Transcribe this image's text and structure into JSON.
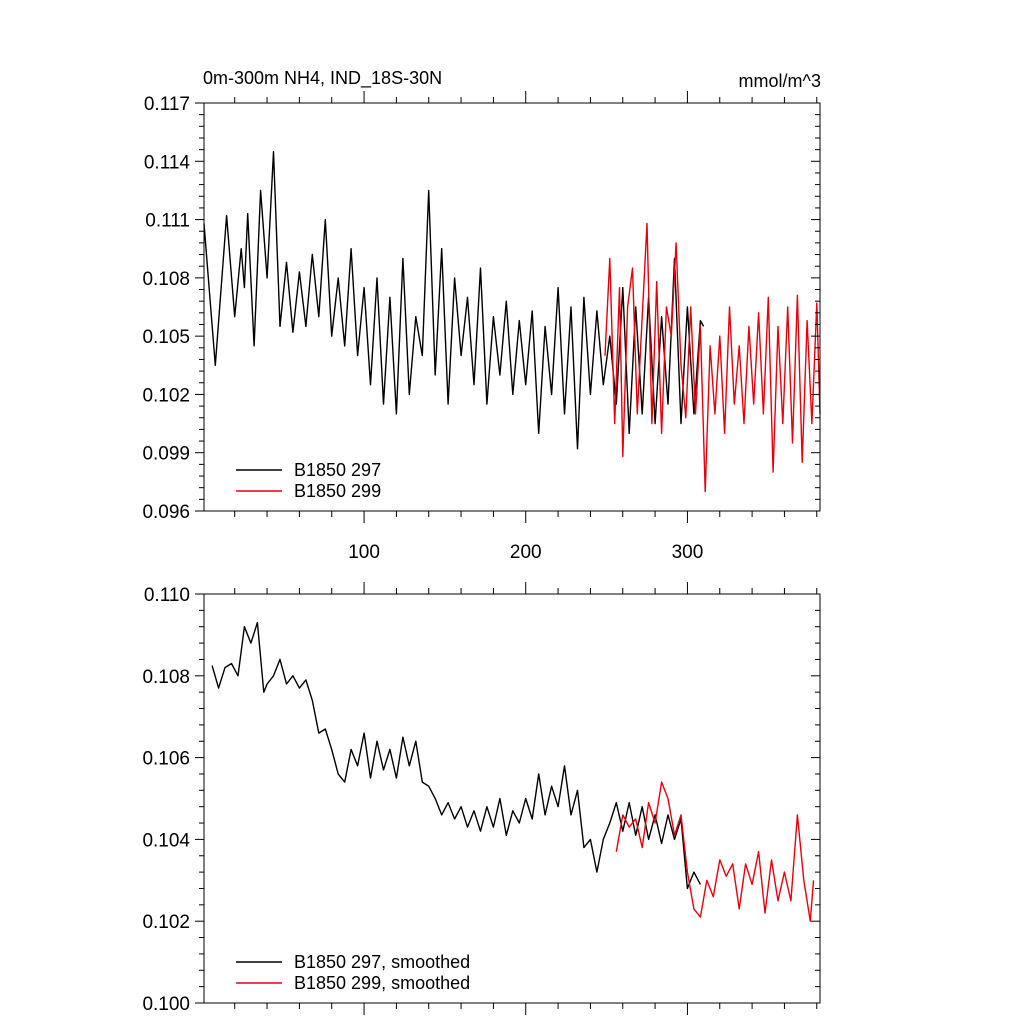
{
  "chart_data": [
    {
      "type": "line",
      "title": "0m-300m NH4, IND_18S-30N",
      "units": "mmol/m^3",
      "xlim": [
        1,
        382
      ],
      "ylim": [
        0.096,
        0.117
      ],
      "x_ticks": [
        100,
        200,
        300
      ],
      "x_tick_labels": [
        "100",
        "200",
        "300"
      ],
      "y_ticks": [
        0.096,
        0.099,
        0.102,
        0.105,
        0.108,
        0.111,
        0.114,
        0.117
      ],
      "y_tick_labels": [
        "0.096",
        "0.099",
        "0.102",
        "0.105",
        "0.108",
        "0.111",
        "0.114",
        "0.117"
      ],
      "grid": false,
      "legend_position": "bottom-left",
      "series": [
        {
          "name": "B1850 297",
          "color": "#000000",
          "x": [
            1,
            8,
            15,
            20,
            24,
            26,
            28,
            32,
            36,
            40,
            44,
            48,
            52,
            56,
            60,
            64,
            68,
            72,
            76,
            80,
            84,
            88,
            92,
            96,
            100,
            104,
            108,
            112,
            116,
            120,
            124,
            128,
            132,
            136,
            140,
            144,
            148,
            152,
            156,
            160,
            164,
            168,
            172,
            176,
            180,
            184,
            188,
            192,
            196,
            200,
            204,
            208,
            212,
            216,
            220,
            224,
            228,
            232,
            236,
            240,
            244,
            248,
            252,
            256,
            260,
            264,
            268,
            272,
            276,
            280,
            284,
            288,
            292,
            296,
            300,
            304,
            308,
            310
          ],
          "values": [
            0.1108,
            0.1035,
            0.1112,
            0.106,
            0.1095,
            0.1075,
            0.1113,
            0.1045,
            0.1125,
            0.108,
            0.1145,
            0.1055,
            0.1088,
            0.1052,
            0.1083,
            0.1055,
            0.1092,
            0.106,
            0.111,
            0.105,
            0.108,
            0.1045,
            0.1095,
            0.104,
            0.1075,
            0.1025,
            0.108,
            0.1015,
            0.107,
            0.101,
            0.109,
            0.102,
            0.106,
            0.104,
            0.1125,
            0.103,
            0.1095,
            0.1015,
            0.108,
            0.104,
            0.107,
            0.1025,
            0.1085,
            0.1015,
            0.106,
            0.103,
            0.1068,
            0.102,
            0.1058,
            0.1025,
            0.1063,
            0.1,
            0.1055,
            0.102,
            0.1075,
            0.101,
            0.1065,
            0.0992,
            0.107,
            0.102,
            0.1063,
            0.1025,
            0.105,
            0.1015,
            0.1075,
            0.1,
            0.1065,
            0.101,
            0.107,
            0.1005,
            0.106,
            0.1015,
            0.109,
            0.1005,
            0.1065,
            0.101,
            0.1058,
            0.1055
          ]
        },
        {
          "name": "B1850 299",
          "color": "#e8000b",
          "x": [
            249,
            252,
            255,
            258,
            260,
            263,
            266,
            269,
            272,
            275,
            278,
            281,
            284,
            287,
            290,
            293,
            296,
            299,
            302,
            305,
            308,
            311,
            314,
            317,
            320,
            323,
            326,
            329,
            332,
            335,
            338,
            341,
            344,
            347,
            350,
            353,
            356,
            359,
            362,
            365,
            368,
            371,
            374,
            377,
            380,
            382
          ],
          "values": [
            0.104,
            0.109,
            0.1005,
            0.1075,
            0.0988,
            0.1065,
            0.1085,
            0.101,
            0.106,
            0.1108,
            0.1005,
            0.1078,
            0.1,
            0.1065,
            0.105,
            0.1098,
            0.1035,
            0.1008,
            0.1065,
            0.101,
            0.1055,
            0.097,
            0.1045,
            0.101,
            0.105,
            0.1,
            0.1065,
            0.1015,
            0.1045,
            0.1005,
            0.1055,
            0.1015,
            0.1062,
            0.101,
            0.107,
            0.098,
            0.1055,
            0.1005,
            0.1065,
            0.0995,
            0.1071,
            0.0985,
            0.1058,
            0.1005,
            0.1067,
            0.101
          ]
        }
      ]
    },
    {
      "type": "line",
      "xlim": [
        1,
        382
      ],
      "ylim": [
        0.1,
        0.11
      ],
      "x_ticks": [
        100,
        200,
        300
      ],
      "y_ticks": [
        0.1,
        0.102,
        0.104,
        0.106,
        0.108,
        0.11
      ],
      "y_tick_labels": [
        "0.100",
        "0.102",
        "0.104",
        "0.106",
        "0.108",
        "0.110"
      ],
      "grid": false,
      "legend_position": "bottom-left",
      "series": [
        {
          "name": "B1850 297, smoothed",
          "color": "#000000",
          "x": [
            6,
            10,
            14,
            18,
            22,
            26,
            30,
            34,
            38,
            40,
            44,
            48,
            52,
            56,
            60,
            64,
            68,
            72,
            76,
            80,
            84,
            88,
            92,
            96,
            100,
            104,
            108,
            112,
            116,
            120,
            124,
            128,
            132,
            136,
            140,
            144,
            148,
            152,
            156,
            160,
            164,
            168,
            172,
            176,
            180,
            184,
            188,
            192,
            196,
            200,
            204,
            208,
            212,
            216,
            220,
            224,
            228,
            232,
            236,
            240,
            244,
            248,
            252,
            256,
            260,
            264,
            268,
            272,
            276,
            280,
            284,
            288,
            292,
            296,
            300,
            304,
            308
          ],
          "values": [
            0.10825,
            0.1077,
            0.1082,
            0.1083,
            0.108,
            0.1092,
            0.1088,
            0.1093,
            0.1076,
            0.1078,
            0.108,
            0.1084,
            0.1078,
            0.108,
            0.1077,
            0.1079,
            0.1074,
            0.1066,
            0.1067,
            0.1062,
            0.1056,
            0.1054,
            0.1062,
            0.1058,
            0.1066,
            0.1055,
            0.1064,
            0.1057,
            0.1062,
            0.1055,
            0.1065,
            0.1058,
            0.1064,
            0.1054,
            0.1053,
            0.105,
            0.1046,
            0.1049,
            0.1045,
            0.1048,
            0.1043,
            0.1047,
            0.1042,
            0.1048,
            0.1043,
            0.105,
            0.1041,
            0.1047,
            0.1044,
            0.105,
            0.1045,
            0.1056,
            0.1046,
            0.1053,
            0.1048,
            0.1058,
            0.1046,
            0.1052,
            0.1038,
            0.104,
            0.1032,
            0.104,
            0.1044,
            0.1049,
            0.1042,
            0.1049,
            0.1041,
            0.1048,
            0.104,
            0.1046,
            0.1039,
            0.1046,
            0.104,
            0.1045,
            0.1028,
            0.1032,
            0.1029
          ]
        },
        {
          "name": "B1850 299, smoothed",
          "color": "#e8000b",
          "x": [
            256,
            260,
            264,
            268,
            272,
            276,
            280,
            284,
            288,
            292,
            296,
            300,
            304,
            308,
            312,
            316,
            320,
            324,
            328,
            332,
            336,
            340,
            344,
            348,
            352,
            356,
            360,
            364,
            368,
            372,
            376,
            378
          ],
          "values": [
            0.1037,
            0.1046,
            0.1043,
            0.1045,
            0.1038,
            0.1049,
            0.1044,
            0.1054,
            0.105,
            0.1041,
            0.1046,
            0.1032,
            0.1023,
            0.1021,
            0.103,
            0.1026,
            0.1035,
            0.1031,
            0.1034,
            0.1023,
            0.1034,
            0.1029,
            0.1037,
            0.1022,
            0.1035,
            0.1025,
            0.1032,
            0.1025,
            0.1046,
            0.103,
            0.102,
            0.103
          ]
        }
      ]
    }
  ]
}
